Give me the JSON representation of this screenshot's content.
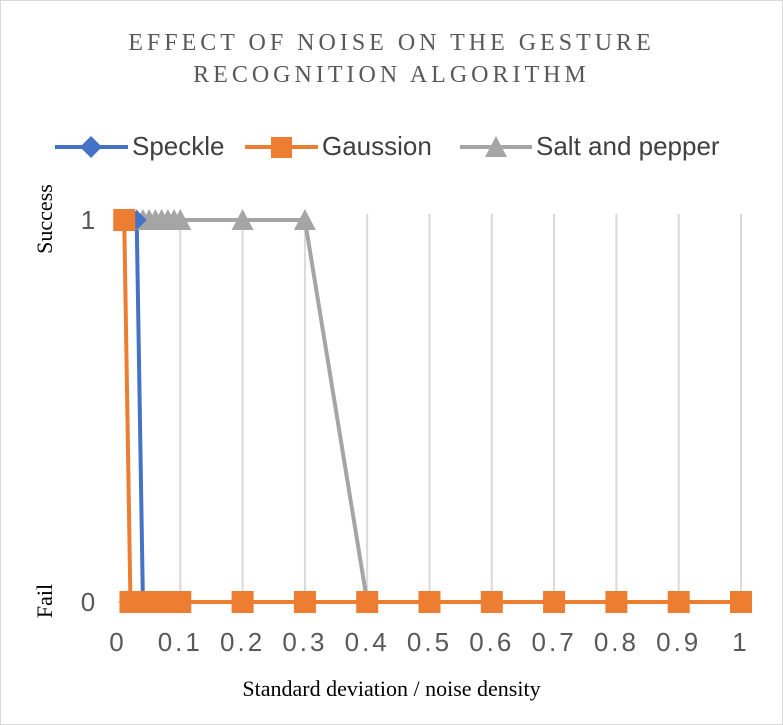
{
  "chart_data": {
    "type": "line",
    "title_lines": [
      "EFFECT OF NOISE ON THE GESTURE",
      "RECOGNITION ALGORITHM"
    ],
    "xlabel": "Standard deviation / noise density",
    "y_words": [
      "Success",
      "Fail"
    ],
    "xlim": [
      0,
      1
    ],
    "ylim": [
      0,
      1
    ],
    "x_ticks": [
      0,
      0.1,
      0.2,
      0.3,
      0.4,
      0.5,
      0.6,
      0.7,
      0.8,
      0.9,
      1
    ],
    "x_tick_labels": [
      "0",
      "0.1",
      "0.2",
      "0.3",
      "0.4",
      "0.5",
      "0.6",
      "0.7",
      "0.8",
      "0.9",
      "1"
    ],
    "y_ticks": [
      0,
      1
    ],
    "y_tick_labels": [
      "0",
      "1"
    ],
    "grid": "vertical",
    "legend_position": "top",
    "series": [
      {
        "name": "Speckle",
        "color": "#4472C4",
        "marker": "diamond",
        "x": [
          0.01,
          0.02,
          0.03,
          0.04,
          0.05,
          0.06,
          0.07,
          0.08,
          0.09,
          0.1,
          0.2,
          0.3,
          0.4,
          0.5,
          0.6,
          0.7,
          0.8,
          0.9,
          1.0
        ],
        "y": [
          1,
          1,
          1,
          0,
          0,
          0,
          0,
          0,
          0,
          0,
          0,
          0,
          0,
          0,
          0,
          0,
          0,
          0,
          0
        ]
      },
      {
        "name": "Gaussion",
        "color": "#ED7D31",
        "marker": "square",
        "x": [
          0.01,
          0.02,
          0.03,
          0.04,
          0.05,
          0.06,
          0.07,
          0.08,
          0.09,
          0.1,
          0.2,
          0.3,
          0.4,
          0.5,
          0.6,
          0.7,
          0.8,
          0.9,
          1.0
        ],
        "y": [
          1,
          0,
          0,
          0,
          0,
          0,
          0,
          0,
          0,
          0,
          0,
          0,
          0,
          0,
          0,
          0,
          0,
          0,
          0
        ]
      },
      {
        "name": "Salt and pepper",
        "color": "#A5A5A5",
        "marker": "triangle",
        "x": [
          0.01,
          0.02,
          0.03,
          0.04,
          0.05,
          0.06,
          0.07,
          0.08,
          0.09,
          0.1,
          0.2,
          0.3,
          0.4,
          0.5,
          0.6,
          0.7,
          0.8,
          0.9,
          1.0
        ],
        "y": [
          1,
          1,
          1,
          1,
          1,
          1,
          1,
          1,
          1,
          1,
          1,
          1,
          0,
          0,
          0,
          0,
          0,
          0,
          0
        ]
      }
    ]
  }
}
